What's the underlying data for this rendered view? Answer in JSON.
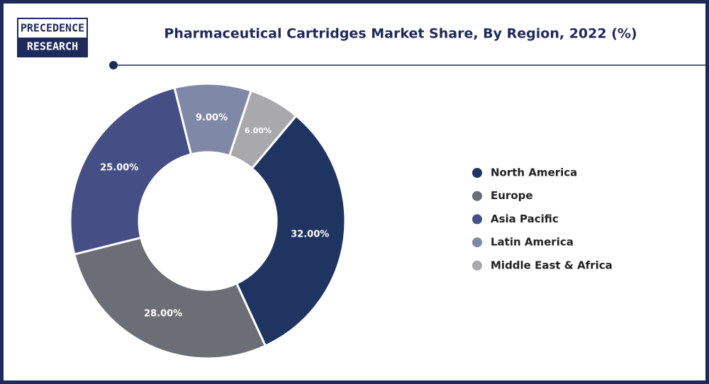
{
  "chart_data": {
    "type": "donut",
    "title": "Pharmaceutical Cartridges Market Share, By Region, 2022 (%)",
    "logo": [
      "PRECEDENCE",
      "RESEARCH"
    ],
    "categories": [
      "North America",
      "Europe",
      "Asia Pacific",
      "Latin America",
      "Middle East & Africa"
    ],
    "values": [
      32,
      28,
      25,
      9,
      6
    ],
    "value_labels": [
      "32.00%",
      "28.00%",
      "25.00%",
      "9.00%",
      "6.00%"
    ],
    "colors": [
      "#1f3461",
      "#6b6e75",
      "#454f86",
      "#8088a8",
      "#a9a9ab"
    ],
    "legend": "right"
  }
}
